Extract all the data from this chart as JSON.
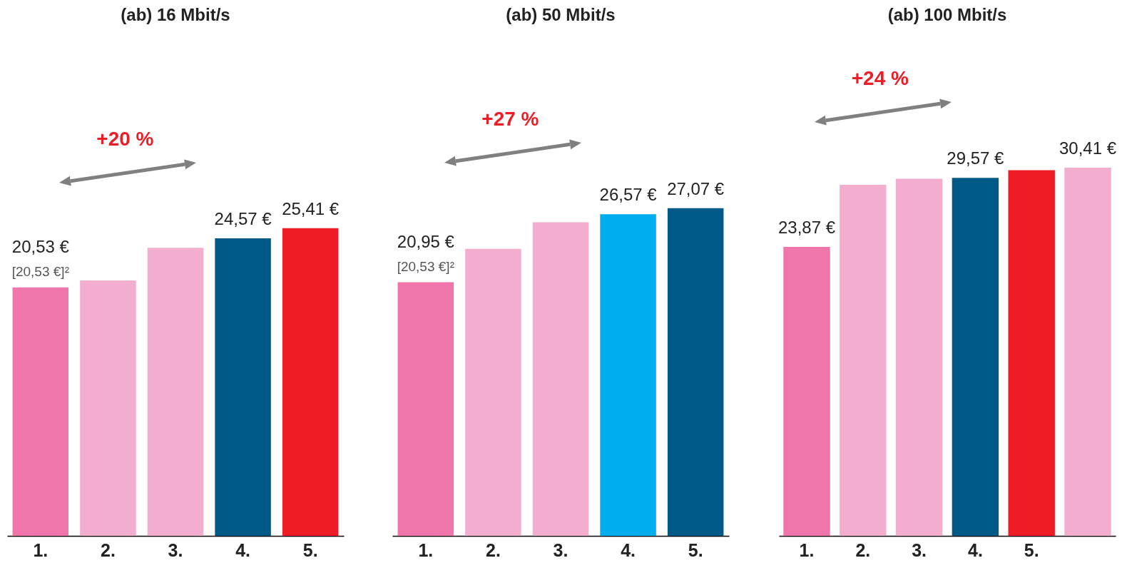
{
  "chart_data": [
    {
      "type": "bar",
      "title": "(ab) 16 Mbit/s",
      "categories": [
        "1.",
        "2.",
        "3.",
        "4.",
        "5."
      ],
      "values": [
        20.53,
        21.1,
        23.8,
        24.57,
        25.41
      ],
      "colors": [
        "#f075aa",
        "#f3aecf",
        "#f3aecf",
        "#005a87",
        "#ee1c25"
      ],
      "value_labels": [
        "20,53 €",
        null,
        null,
        "24,57 €",
        "25,41 €"
      ],
      "annotations": [
        "+20 %",
        {
          "text": "[20,53 €]²",
          "x": "1.",
          "y": 20.53
        }
      ],
      "tick_labels": "x"
    },
    {
      "type": "bar",
      "title": "(ab) 50 Mbit/s",
      "categories": [
        "1.",
        "2.",
        "3.",
        "4.",
        "5."
      ],
      "values": [
        20.95,
        23.7,
        25.9,
        26.57,
        27.07
      ],
      "colors": [
        "#f075aa",
        "#f3aecf",
        "#f3aecf",
        "#00aeef",
        "#005a87"
      ],
      "value_labels": [
        "20,95 €",
        null,
        null,
        "26,57 €",
        "27,07 €"
      ],
      "annotations": [
        "+27 %",
        {
          "text": "[20,53 €]²",
          "x": "1.",
          "y": 20.95
        }
      ],
      "tick_labels": "x"
    },
    {
      "type": "bar",
      "title": "(ab) 100 Mbit/s",
      "categories": [
        "1.",
        "2.",
        "3.",
        "4.",
        "5.",
        null
      ],
      "values": [
        23.87,
        29.0,
        29.5,
        29.57,
        30.2,
        30.41
      ],
      "colors": [
        "#f075aa",
        "#f3aecf",
        "#f3aecf",
        "#005a87",
        "#ee1c25",
        "#f3aecf"
      ],
      "value_labels": [
        "23,87 €",
        null,
        null,
        "29,57 €",
        null,
        "30,41 €"
      ],
      "annotations": [
        "+24 %"
      ],
      "tick_labels": "x"
    }
  ]
}
